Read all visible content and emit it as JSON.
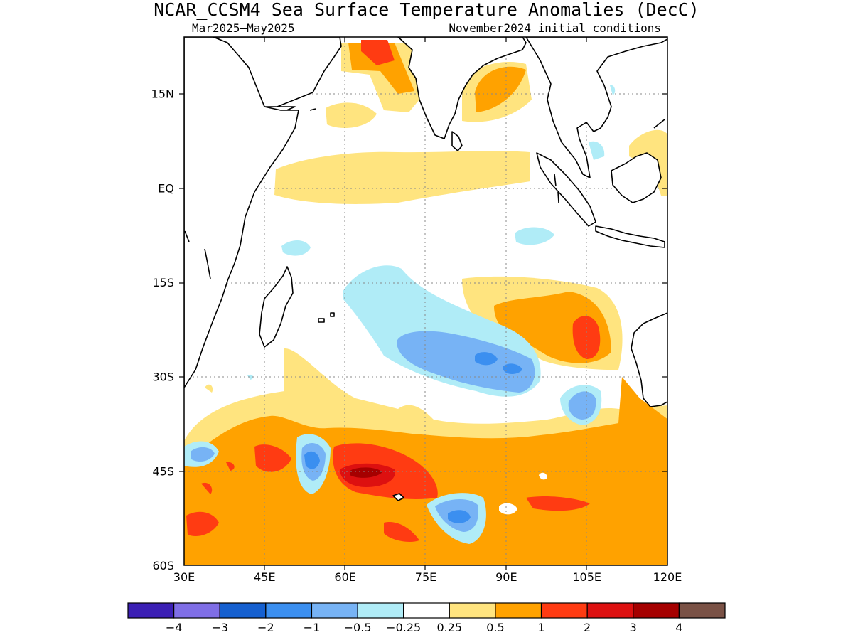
{
  "title": "NCAR_CCSM4 Sea Surface Temperature Anomalies (DecC)",
  "period": "Mar2025–May2025",
  "initial_conditions": "November2024 initial conditions",
  "map": {
    "lon_range": [
      30,
      120
    ],
    "lat_range": [
      -60,
      24
    ],
    "x_ticks": [
      {
        "value": 30,
        "label": "30E"
      },
      {
        "value": 45,
        "label": "45E"
      },
      {
        "value": 60,
        "label": "60E"
      },
      {
        "value": 75,
        "label": "75E"
      },
      {
        "value": 90,
        "label": "90E"
      },
      {
        "value": 105,
        "label": "105E"
      },
      {
        "value": 120,
        "label": "120E"
      }
    ],
    "y_ticks": [
      {
        "value": 15,
        "label": "15N"
      },
      {
        "value": 0,
        "label": "EQ"
      },
      {
        "value": -15,
        "label": "15S"
      },
      {
        "value": -30,
        "label": "30S"
      },
      {
        "value": -45,
        "label": "45S"
      },
      {
        "value": -60,
        "label": "60S"
      }
    ],
    "grid": true
  },
  "colorbar": {
    "colors": [
      "#3b1fb4",
      "#7f6ee6",
      "#1560d0",
      "#3b8ff0",
      "#77b3f5",
      "#b0ecf7",
      "#ffffff",
      "#ffe47f",
      "#ffa200",
      "#ff3b12",
      "#dd1010",
      "#a50000",
      "#7a5246"
    ],
    "labels": [
      "−4",
      "−3",
      "−2",
      "−1",
      "−0.5",
      "−0.25",
      "0.25",
      "0.5",
      "1",
      "2",
      "3",
      "4"
    ]
  }
}
